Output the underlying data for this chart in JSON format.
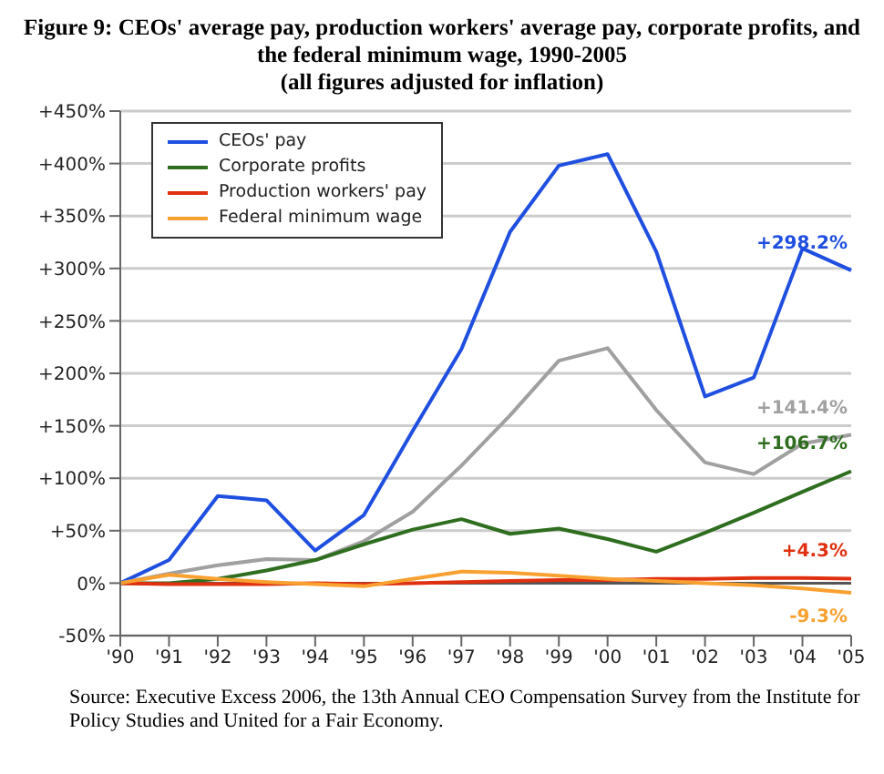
{
  "chart_data": {
    "type": "line",
    "title": "Figure 9: CEOs' average pay, production workers' average pay, corporate profits, and the federal minimum wage, 1990-2005",
    "subtitle": "(all figures adjusted for inflation)",
    "categories": [
      "'90",
      "'91",
      "'92",
      "'93",
      "'94",
      "'95",
      "'96",
      "'97",
      "'98",
      "'99",
      "'00",
      "'01",
      "'02",
      "'03",
      "'04",
      "'05"
    ],
    "series": [
      {
        "name": "CEOs' pay",
        "color": "#1f4fe0",
        "values": [
          0,
          22,
          83,
          79,
          31,
          65,
          145,
          223,
          335,
          398,
          409,
          316,
          178,
          196,
          319,
          298.2
        ],
        "value_labels": [
          null,
          null,
          null,
          null,
          null,
          null,
          null,
          null,
          null,
          null,
          null,
          null,
          null,
          null,
          null,
          "+298.2%"
        ]
      },
      {
        "color": "#a0a0a0",
        "values": [
          0,
          9,
          17,
          23,
          22,
          40,
          68,
          112,
          160,
          212,
          224,
          165,
          115,
          104,
          133,
          141.4
        ],
        "value_labels": [
          null,
          null,
          null,
          null,
          null,
          null,
          null,
          null,
          null,
          null,
          null,
          null,
          null,
          null,
          null,
          "+141.4%"
        ]
      },
      {
        "name": "Corporate profits",
        "color": "#2e6e1e",
        "values": [
          0,
          0,
          4,
          12,
          22,
          37,
          51,
          61,
          47,
          52,
          42,
          30,
          48,
          67,
          87,
          106.7
        ],
        "value_labels": [
          null,
          null,
          null,
          null,
          null,
          null,
          null,
          null,
          null,
          null,
          null,
          null,
          null,
          null,
          null,
          "+106.7%"
        ]
      },
      {
        "name": "Production workers' pay",
        "color": "#e03010",
        "values": [
          0,
          -1,
          -1,
          -1,
          0,
          -1,
          0,
          1,
          2,
          3,
          3,
          4,
          4,
          5,
          5,
          4.3
        ],
        "value_labels": [
          null,
          null,
          null,
          null,
          null,
          null,
          null,
          null,
          null,
          null,
          null,
          null,
          null,
          null,
          null,
          "+4.3%"
        ]
      },
      {
        "name": "Federal minimum wage",
        "color": "#f8a030",
        "values": [
          0,
          8,
          4,
          1,
          -1,
          -3,
          4,
          11,
          10,
          7,
          4,
          2,
          0,
          -2,
          -5,
          -9.3
        ],
        "value_labels": [
          null,
          null,
          null,
          null,
          null,
          null,
          null,
          null,
          null,
          null,
          null,
          null,
          null,
          null,
          null,
          "-9.3%"
        ]
      }
    ],
    "ylim": [
      -50,
      450
    ],
    "yticks": [
      {
        "value": -50,
        "label": "-50%"
      },
      {
        "value": 0,
        "label": "0%"
      },
      {
        "value": 50,
        "label": "+50%"
      },
      {
        "value": 100,
        "label": "+100%"
      },
      {
        "value": 150,
        "label": "+150%"
      },
      {
        "value": 200,
        "label": "+200%"
      },
      {
        "value": 250,
        "label": "+250%"
      },
      {
        "value": 300,
        "label": "+300%"
      },
      {
        "value": 350,
        "label": "+350%"
      },
      {
        "value": 400,
        "label": "+400%"
      },
      {
        "value": 450,
        "label": "+450%"
      }
    ],
    "grid": "y",
    "legend": "top left",
    "marker": "none",
    "line_style": "solid",
    "annotations": [
      "Source: Executive Excess 2006, the 13th Annual CEO Compensation Survey from the Institute for Policy Studies and United for a Fair Economy."
    ]
  }
}
